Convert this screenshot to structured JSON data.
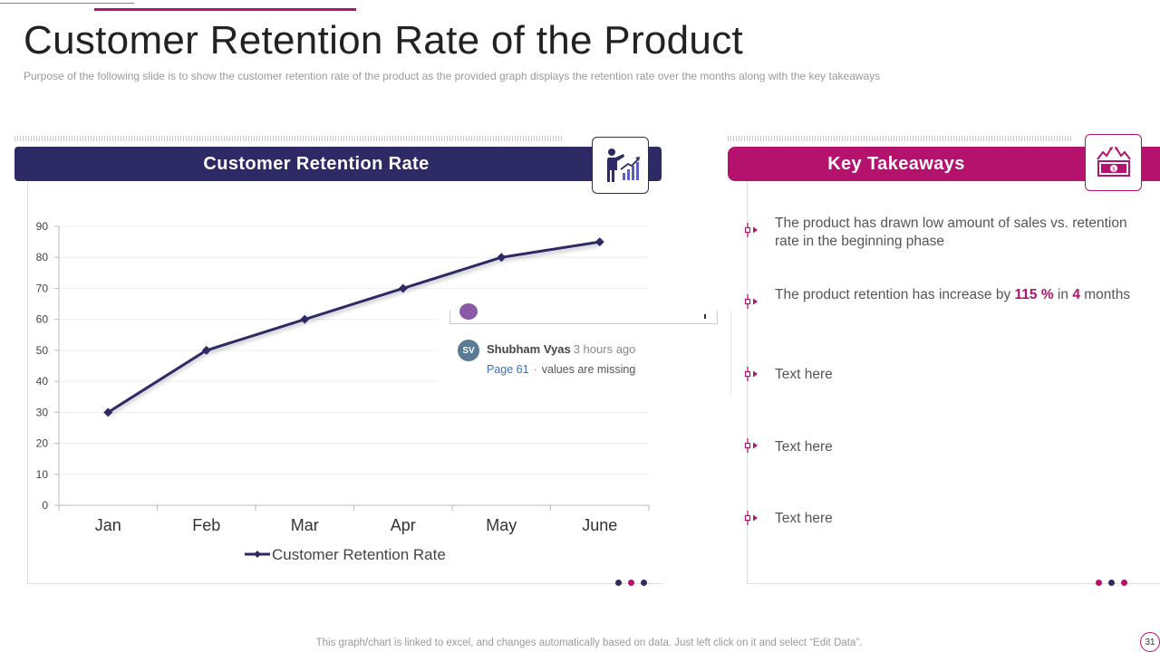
{
  "title": "Customer Retention Rate of the Product",
  "subtitle": "Purpose of the following slide is to show the customer retention rate of the product as the provided graph displays the retention rate over the months along with the key takeaways",
  "left_panel": {
    "header": "Customer Retention Rate",
    "icon": "presenter-growth-chart-icon"
  },
  "right_panel": {
    "header": "Key Takeaways",
    "icon": "money-growth-icon"
  },
  "chart_data": {
    "type": "line",
    "title": "Customer Retention Rate",
    "categories": [
      "Jan",
      "Feb",
      "Mar",
      "Apr",
      "May",
      "June"
    ],
    "series": [
      {
        "name": "Customer Retention Rate",
        "values": [
          30,
          50,
          60,
          70,
          80,
          85
        ]
      }
    ],
    "yticks": [
      "0",
      "10",
      "20",
      "30",
      "40",
      "50",
      "60",
      "70",
      "80",
      "90"
    ],
    "ylim": [
      0,
      90
    ],
    "xlabel": "",
    "ylabel": "",
    "grid": true,
    "legend": "bottom"
  },
  "comment": {
    "initials": "SV",
    "author": "Shubham Vyas",
    "time": "3 hours ago",
    "link": "Page 61",
    "separator": "·",
    "text": "values are missing"
  },
  "takeaways": {
    "t1": "The product has drawn low amount of sales vs. retention rate in the beginning phase",
    "t2_pre": "The product retention has increase by ",
    "t2_highlight1": "115 %",
    "t2_mid": " in ",
    "t2_highlight2": "4",
    "t2_post": " months",
    "t3": "Text here",
    "t4": "Text here",
    "t5": "Text here"
  },
  "colors": {
    "navy": "#2e2a66",
    "magenta": "#b5126e",
    "gridline": "#eeeeee"
  },
  "footer": "This graph/chart is linked to excel, and changes automatically based on data. Just left click on it and select “Edit Data”.",
  "page_number": "31"
}
